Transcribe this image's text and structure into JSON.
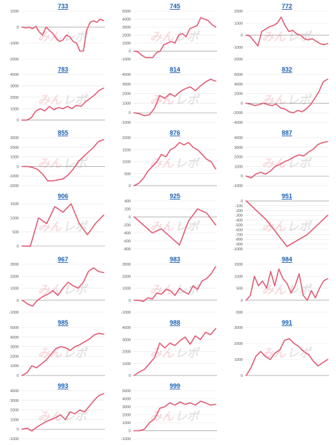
{
  "line_color": "#e05a73",
  "title_color": "#1a5fb4",
  "watermark": "みんレポ",
  "chart_data": [
    {
      "type": "line",
      "title": "733",
      "yticks": [
        "1000",
        "0",
        "-1000",
        "-2000"
      ],
      "ylim": [
        -2000,
        1000
      ],
      "values": [
        0,
        -50,
        0,
        -100,
        50,
        -300,
        -500,
        0,
        -200,
        -400,
        -700,
        -900,
        -800,
        -500,
        -600,
        -900,
        -1000,
        -1500,
        -1500,
        -200,
        300,
        400,
        300,
        500,
        400
      ]
    },
    {
      "type": "line",
      "title": "745",
      "yticks": [
        "5000",
        "4000",
        "3000",
        "2000",
        "1000",
        "0",
        "-1000"
      ],
      "ylim": [
        -1000,
        5000
      ],
      "values": [
        0,
        -100,
        -500,
        -800,
        -800,
        -800,
        -200,
        0,
        800,
        1000,
        1200,
        1000,
        2000,
        2200,
        1800,
        2800,
        3000,
        3200,
        4200,
        4000,
        3800,
        3300,
        3000
      ]
    },
    {
      "type": "line",
      "title": "772",
      "yticks": [
        "2000",
        "1000",
        "0",
        "-1000",
        "-2000"
      ],
      "ylim": [
        -2000,
        2000
      ],
      "values": [
        0,
        -100,
        -500,
        -900,
        300,
        500,
        700,
        800,
        1000,
        1500,
        800,
        300,
        400,
        100,
        0,
        -300,
        -400,
        -300,
        -500,
        -700,
        -800,
        -700
      ]
    },
    {
      "type": "line",
      "title": "783",
      "yticks": [
        "4000",
        "3000",
        "2000",
        "1000",
        "0"
      ],
      "ylim": [
        -200,
        4000
      ],
      "values": [
        0,
        0,
        200,
        800,
        1000,
        800,
        1200,
        900,
        1100,
        1000,
        1200,
        1000,
        1300,
        1200,
        1600,
        1900,
        2200,
        2600,
        2800
      ]
    },
    {
      "type": "line",
      "title": "814",
      "yticks": [
        "4000",
        "3000",
        "2000",
        "1000",
        "0",
        "-1000"
      ],
      "ylim": [
        -1000,
        4000
      ],
      "values": [
        0,
        -100,
        -300,
        -200,
        500,
        1800,
        1500,
        2000,
        1700,
        2200,
        2500,
        2700,
        2300,
        2800,
        3200,
        3500,
        3300
      ]
    },
    {
      "type": "line",
      "title": "832",
      "yticks": [
        "6000",
        "4000",
        "2000",
        "0",
        "-2000",
        "-4000"
      ],
      "ylim": [
        -4000,
        6000
      ],
      "values": [
        0,
        -200,
        -500,
        -300,
        0,
        -300,
        -500,
        -200,
        -1000,
        -1200,
        -1800,
        -2000,
        -1500,
        -1800,
        -1200,
        -300,
        1000,
        2500,
        4500,
        5000
      ]
    },
    {
      "type": "line",
      "title": "855",
      "yticks": [
        "3000",
        "2000",
        "1000",
        "0",
        "-1000",
        "-2000"
      ],
      "ylim": [
        -2000,
        3000
      ],
      "values": [
        0,
        0,
        -100,
        -300,
        -800,
        -1500,
        -1500,
        -1400,
        -1300,
        -900,
        -300,
        500,
        1000,
        1500,
        2000,
        2600,
        2800
      ]
    },
    {
      "type": "line",
      "title": "876",
      "yticks": [
        "2000",
        "1500",
        "1000",
        "500",
        "0"
      ],
      "ylim": [
        0,
        2000
      ],
      "values": [
        0,
        100,
        300,
        600,
        800,
        1000,
        1300,
        1200,
        1500,
        1600,
        1800,
        1700,
        1800,
        1600,
        1500,
        1300,
        1100,
        1000,
        700
      ]
    },
    {
      "type": "line",
      "title": "887",
      "yticks": [
        "4000",
        "3000",
        "2000",
        "1000",
        "0",
        "-1000"
      ],
      "ylim": [
        -1000,
        4000
      ],
      "values": [
        0,
        -200,
        200,
        400,
        200,
        500,
        1000,
        1200,
        1500,
        1700,
        2000,
        2200,
        2100,
        2500,
        2800,
        3300,
        3500,
        3600
      ]
    },
    {
      "type": "line",
      "title": "906",
      "yticks": [
        "1500",
        "1000",
        "500",
        "0"
      ],
      "ylim": [
        -100,
        1600
      ],
      "values": [
        0,
        0,
        1000,
        800,
        1400,
        1200,
        1500,
        800,
        400,
        800,
        1100
      ]
    },
    {
      "type": "line",
      "title": "925",
      "yticks": [
        "400",
        "200",
        "0",
        "-200",
        "-400",
        "-600",
        "-800"
      ],
      "ylim": [
        -800,
        400
      ],
      "values": [
        0,
        -200,
        -400,
        -300,
        -500,
        -700,
        -100,
        200,
        100,
        -200
      ]
    },
    {
      "type": "line",
      "title": "951",
      "yticks": [
        "0",
        "-100",
        "-200",
        "-300",
        "-400",
        "-500",
        "-600",
        "-700",
        "-800",
        "-900",
        "-1000"
      ],
      "ylim": [
        -1000,
        0
      ],
      "values": [
        0,
        -400,
        -950,
        -700,
        -300
      ]
    },
    {
      "type": "line",
      "title": "967",
      "yticks": [
        "3000",
        "2000",
        "1000",
        "0",
        "-1000"
      ],
      "ylim": [
        -1000,
        3000
      ],
      "values": [
        0,
        -300,
        -500,
        0,
        300,
        500,
        800,
        400,
        1000,
        1500,
        1200,
        1000,
        1500,
        2400,
        2700,
        2400,
        2300
      ]
    },
    {
      "type": "line",
      "title": "983",
      "yticks": [
        "3000",
        "2000",
        "1000",
        "0",
        "-1000"
      ],
      "ylim": [
        -1000,
        3000
      ],
      "values": [
        0,
        0,
        -100,
        200,
        100,
        600,
        500,
        900,
        800,
        400,
        1000,
        700,
        500,
        1200,
        900,
        1600,
        1800,
        2200,
        2800
      ]
    },
    {
      "type": "line",
      "title": "984",
      "yticks": [
        "1500",
        "1000",
        "500",
        "0",
        "-500"
      ],
      "ylim": [
        -500,
        1500
      ],
      "values": [
        0,
        200,
        1000,
        600,
        800,
        500,
        1200,
        600,
        1300,
        900,
        700,
        300,
        600,
        1100,
        200,
        0,
        400,
        100,
        500,
        800,
        900
      ]
    },
    {
      "type": "line",
      "title": "985",
      "yticks": [
        "5000",
        "4000",
        "3000",
        "2000",
        "1000",
        "0"
      ],
      "ylim": [
        0,
        5000
      ],
      "values": [
        0,
        300,
        1000,
        800,
        1200,
        1600,
        2200,
        2800,
        3000,
        2900,
        2600,
        3000,
        3200,
        3500,
        3800,
        4200,
        4400,
        4300
      ]
    },
    {
      "type": "line",
      "title": "988",
      "yticks": [
        "4000",
        "3000",
        "2000",
        "1000",
        "0"
      ],
      "ylim": [
        0,
        4000
      ],
      "values": [
        0,
        300,
        500,
        1000,
        1500,
        2700,
        2300,
        2700,
        2500,
        2900,
        3200,
        2600,
        3300,
        3000,
        3600,
        3400,
        3900
      ]
    },
    {
      "type": "line",
      "title": "991",
      "yticks": [
        "3000",
        "2000",
        "1000",
        "0"
      ],
      "ylim": [
        0,
        3000
      ],
      "values": [
        0,
        500,
        1200,
        1500,
        1200,
        1000,
        1400,
        1600,
        2200,
        2300,
        2000,
        1800,
        1500,
        1300,
        900,
        600,
        800,
        1000
      ]
    },
    {
      "type": "line",
      "title": "993",
      "yticks": [
        "4000",
        "3000",
        "2000",
        "1000",
        "0",
        "-1000"
      ],
      "ylim": [
        -1000,
        4000
      ],
      "values": [
        0,
        100,
        -200,
        200,
        500,
        800,
        1000,
        1200,
        1500,
        1000,
        1800,
        1600,
        2000,
        1800,
        2400,
        3000,
        3500,
        3700
      ]
    },
    {
      "type": "line",
      "title": "999",
      "yticks": [
        "5000",
        "4000",
        "3000",
        "2000",
        "1000",
        "0",
        "-1000"
      ],
      "ylim": [
        -1000,
        5000
      ],
      "values": [
        0,
        0,
        200,
        1000,
        1500,
        2800,
        3000,
        3500,
        3200,
        3600,
        3300,
        3500,
        3200,
        3700,
        3500,
        3200,
        3300
      ]
    }
  ]
}
